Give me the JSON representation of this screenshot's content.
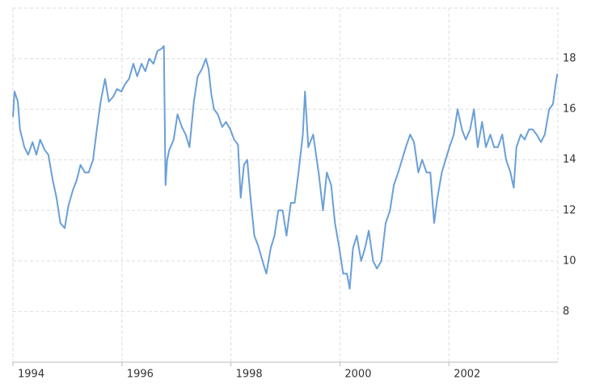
{
  "chart_data": {
    "type": "line",
    "x": [
      1994.0,
      1994.03,
      1994.09,
      1994.13,
      1994.21,
      1994.28,
      1994.36,
      1994.43,
      1994.5,
      1994.58,
      1994.65,
      1994.73,
      1994.8,
      1994.87,
      1994.95,
      1995.02,
      1995.1,
      1995.17,
      1995.24,
      1995.32,
      1995.39,
      1995.47,
      1995.54,
      1995.61,
      1995.69,
      1995.76,
      1995.84,
      1995.91,
      1995.99,
      1996.06,
      1996.13,
      1996.21,
      1996.28,
      1996.36,
      1996.43,
      1996.5,
      1996.58,
      1996.65,
      1996.73,
      1996.77,
      1996.8,
      1996.83,
      1996.87,
      1996.95,
      1997.02,
      1997.1,
      1997.17,
      1997.24,
      1997.32,
      1997.39,
      1997.47,
      1997.54,
      1997.59,
      1997.64,
      1997.69,
      1997.76,
      1997.84,
      1997.91,
      1997.99,
      1998.06,
      1998.13,
      1998.18,
      1998.24,
      1998.3,
      1998.36,
      1998.43,
      1998.5,
      1998.58,
      1998.65,
      1998.73,
      1998.8,
      1998.87,
      1998.95,
      1999.02,
      1999.1,
      1999.17,
      1999.24,
      1999.32,
      1999.36,
      1999.42,
      1999.51,
      1999.61,
      1999.69,
      1999.76,
      1999.84,
      1999.91,
      1999.99,
      2000.06,
      2000.13,
      2000.18,
      2000.24,
      2000.31,
      2000.39,
      2000.46,
      2000.53,
      2000.61,
      2000.68,
      2000.76,
      2000.84,
      2000.92,
      2000.99,
      2001.07,
      2001.14,
      2001.21,
      2001.29,
      2001.36,
      2001.44,
      2001.51,
      2001.59,
      2001.66,
      2001.73,
      2001.79,
      2001.87,
      2001.94,
      2002.01,
      2002.09,
      2002.16,
      2002.24,
      2002.31,
      2002.39,
      2002.46,
      2002.53,
      2002.61,
      2002.68,
      2002.76,
      2002.83,
      2002.9,
      2002.98,
      2003.05,
      2003.13,
      2003.19,
      2003.24,
      2003.32,
      2003.39,
      2003.47,
      2003.54,
      2003.61,
      2003.69,
      2003.76,
      2003.84,
      2003.91,
      2003.96,
      2003.99
    ],
    "series": [
      {
        "color": "#6a9fd8",
        "values": [
          15.7,
          16.7,
          16.3,
          15.2,
          14.5,
          14.2,
          14.7,
          14.2,
          14.8,
          14.4,
          14.2,
          13.2,
          12.5,
          11.5,
          11.3,
          12.2,
          12.8,
          13.2,
          13.8,
          13.5,
          13.5,
          14.0,
          15.2,
          16.3,
          17.2,
          16.3,
          16.5,
          16.8,
          16.7,
          17.0,
          17.2,
          17.8,
          17.3,
          17.8,
          17.5,
          18.0,
          17.8,
          18.3,
          18.4,
          18.5,
          13.0,
          14.0,
          14.4,
          14.8,
          15.8,
          15.3,
          15.0,
          14.5,
          16.3,
          17.3,
          17.6,
          18.0,
          17.6,
          16.6,
          16.0,
          15.8,
          15.3,
          15.5,
          15.2,
          14.8,
          14.6,
          12.5,
          13.8,
          14.0,
          12.5,
          11.0,
          10.6,
          10.0,
          9.5,
          10.5,
          11.0,
          12.0,
          12.0,
          11.0,
          12.3,
          12.3,
          13.5,
          15.0,
          16.7,
          14.5,
          15.0,
          13.5,
          12.0,
          13.5,
          13.0,
          11.5,
          10.5,
          9.5,
          9.5,
          8.9,
          10.5,
          11.0,
          10.0,
          10.5,
          11.2,
          10.0,
          9.7,
          10.0,
          11.5,
          12.0,
          13.0,
          13.5,
          14.0,
          14.5,
          15.0,
          14.7,
          13.5,
          14.0,
          13.5,
          13.5,
          11.5,
          12.5,
          13.5,
          14.0,
          14.5,
          15.0,
          16.0,
          15.2,
          14.8,
          15.2,
          16.0,
          14.5,
          15.5,
          14.5,
          15.0,
          14.5,
          14.5,
          15.0,
          14.0,
          13.5,
          12.9,
          14.5,
          15.0,
          14.8,
          15.2,
          15.2,
          15.0,
          14.7,
          15.0,
          16.0,
          16.2,
          17.0,
          17.4
        ]
      }
    ],
    "xlim": [
      1994,
      2004
    ],
    "xticks": [
      1994,
      1996,
      1998,
      2000,
      2002
    ],
    "ylim": [
      6,
      20
    ],
    "yticks": [
      8,
      10,
      12,
      14,
      16,
      18
    ],
    "grid": true
  }
}
